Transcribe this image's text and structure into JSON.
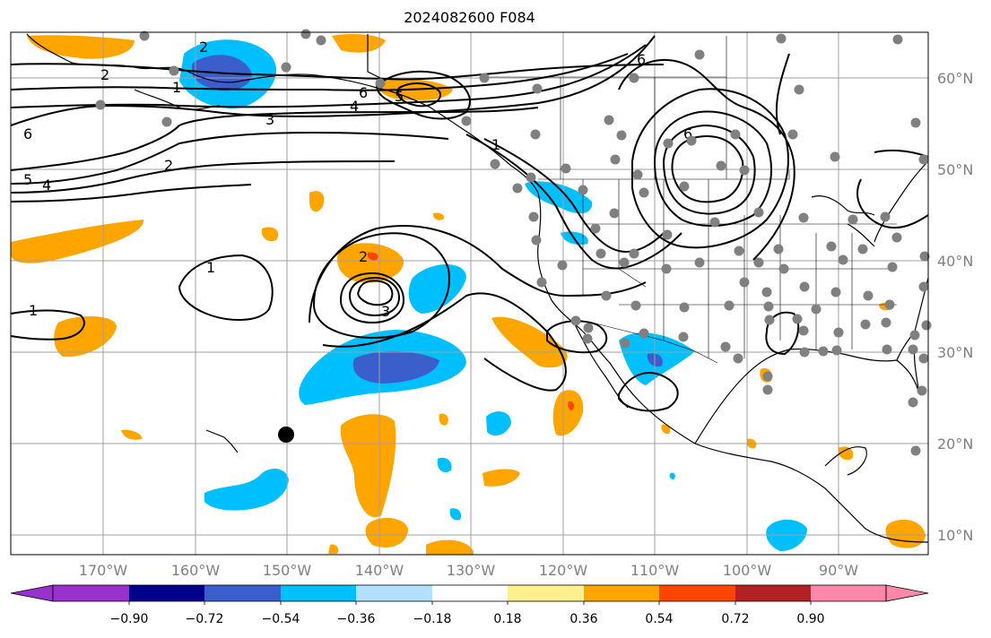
{
  "title": "2024082600 F084",
  "colors": {
    "neg_090_below": "#9932cc",
    "neg_090_072": "#00008b",
    "neg_072_054": "#3a5fcd",
    "neg_054_036": "#00bfff",
    "neg_036_018": "#b0e2ff",
    "neutral": "#ffffff",
    "pos_018_036": "#fff08f",
    "pos_036_054": "#ffa500",
    "pos_054_072": "#ff4500",
    "pos_072_090": "#b22222",
    "pos_090_above": "#ff88aa",
    "station": "#808080",
    "marker": "#000000"
  },
  "axes": {
    "lon_labels": [
      "170°W",
      "160°W",
      "150°W",
      "140°W",
      "130°W",
      "120°W",
      "110°W",
      "100°W",
      "90°W"
    ],
    "lat_labels": [
      "60°N",
      "50°N",
      "40°N",
      "30°N",
      "20°N",
      "10°N"
    ]
  },
  "colorbar": {
    "labels": [
      "−0.90",
      "−0.72",
      "−0.54",
      "−0.36",
      "−0.18",
      "0.18",
      "0.36",
      "0.54",
      "0.72",
      "0.90"
    ]
  },
  "contour_labels": [
    "2",
    "2",
    "1",
    "6",
    "4",
    "3",
    "2",
    "5",
    "4",
    "6",
    "5",
    "6",
    "1",
    "1",
    "2",
    "3",
    "1",
    "6"
  ]
}
